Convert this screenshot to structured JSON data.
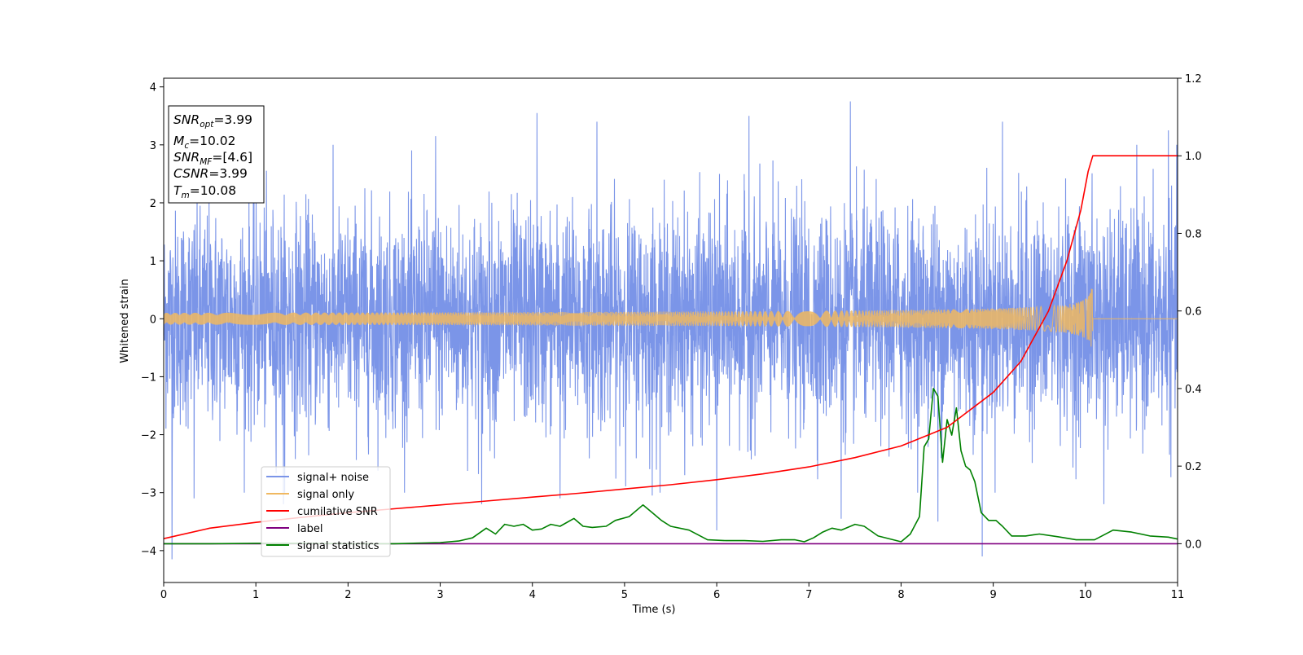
{
  "chart_data": {
    "type": "line",
    "title": "",
    "xlabel": "Time (s)",
    "ylabel": "Whitened strain",
    "ylabel_right": "",
    "xlim": [
      0,
      11
    ],
    "ylim": [
      -4.55,
      4.15
    ],
    "ylim_right": [
      -0.1,
      1.2
    ],
    "x_ticks": [
      0,
      1,
      2,
      3,
      4,
      5,
      6,
      7,
      8,
      9,
      10,
      11
    ],
    "y_ticks": [
      -4,
      -3,
      -2,
      -1,
      0,
      1,
      2,
      3,
      4
    ],
    "y_ticks_right": [
      0.0,
      0.2,
      0.4,
      0.6,
      0.8,
      1.0,
      1.2
    ],
    "x_tick_labels": [
      "0",
      "1",
      "2",
      "3",
      "4",
      "5",
      "6",
      "7",
      "8",
      "9",
      "10",
      "11"
    ],
    "y_tick_labels": [
      "−4",
      "−3",
      "−2",
      "−1",
      "0",
      "1",
      "2",
      "3",
      "4"
    ],
    "y_tick_labels_right": [
      "0.0",
      "0.2",
      "0.4",
      "0.6",
      "0.8",
      "1.0",
      "1.2"
    ],
    "grid": false,
    "legend_position": "lower-left",
    "annotation_box": {
      "position": "upper-left",
      "lines": [
        {
          "base": "SNR",
          "sub": "opt",
          "value": "=3.99"
        },
        {
          "base": "M",
          "sub": "c",
          "value": "=10.02"
        },
        {
          "base": "SNR",
          "sub": "MF",
          "value": "=[4.6]"
        },
        {
          "base": "CSNR",
          "sub": "",
          "value": "=3.99"
        },
        {
          "base": "T",
          "sub": "m",
          "value": "=10.08"
        }
      ]
    },
    "series": [
      {
        "name": "signal+ noise",
        "color": "#7b95e8",
        "axis": "left",
        "kind": "noise",
        "typical_range": [
          -1.4,
          1.5
        ],
        "peaks": [
          [
            0.09,
            -4.15
          ],
          [
            0.33,
            -3.1
          ],
          [
            1.3,
            -3.2
          ],
          [
            2.95,
            3.15
          ],
          [
            3.45,
            -3.2
          ],
          [
            4.05,
            3.55
          ],
          [
            4.3,
            -3.1
          ],
          [
            4.7,
            3.4
          ],
          [
            5.3,
            -3.05
          ],
          [
            6.0,
            -3.65
          ],
          [
            6.35,
            3.5
          ],
          [
            7.35,
            -3.45
          ],
          [
            7.45,
            3.75
          ],
          [
            8.4,
            -3.5
          ],
          [
            8.88,
            -4.1
          ],
          [
            9.1,
            3.4
          ],
          [
            10.2,
            -3.2
          ],
          [
            10.9,
            3.25
          ]
        ]
      },
      {
        "name": "signal only",
        "color": "#f0b860",
        "axis": "left",
        "kind": "chirp",
        "t_merge": 10.08,
        "peak_amplitude": 0.55
      },
      {
        "name": "cumilative SNR",
        "color": "#ff0000",
        "axis": "right",
        "x": [
          0.0,
          0.5,
          1.0,
          1.5,
          2.0,
          2.5,
          3.0,
          3.5,
          4.0,
          4.5,
          5.0,
          5.5,
          6.0,
          6.5,
          7.0,
          7.5,
          8.0,
          8.5,
          9.0,
          9.3,
          9.6,
          9.8,
          9.95,
          10.03,
          10.08,
          10.5,
          11.0
        ],
        "values": [
          0.013,
          0.04,
          0.055,
          0.068,
          0.08,
          0.09,
          0.1,
          0.11,
          0.12,
          0.13,
          0.141,
          0.152,
          0.165,
          0.18,
          0.198,
          0.222,
          0.252,
          0.3,
          0.39,
          0.47,
          0.6,
          0.73,
          0.86,
          0.96,
          1.0,
          1.0,
          1.0
        ]
      },
      {
        "name": "label",
        "color": "#800080",
        "axis": "right",
        "x": [
          0,
          11
        ],
        "values": [
          0.0,
          0.0
        ]
      },
      {
        "name": "signal statistics",
        "color": "#008000",
        "axis": "right",
        "x": [
          0.0,
          0.5,
          1.0,
          1.5,
          2.0,
          2.5,
          3.0,
          3.2,
          3.35,
          3.5,
          3.6,
          3.7,
          3.8,
          3.9,
          4.0,
          4.1,
          4.2,
          4.3,
          4.45,
          4.55,
          4.65,
          4.8,
          4.9,
          5.05,
          5.2,
          5.3,
          5.4,
          5.5,
          5.7,
          5.9,
          6.1,
          6.3,
          6.5,
          6.7,
          6.85,
          6.95,
          7.05,
          7.15,
          7.25,
          7.35,
          7.5,
          7.6,
          7.75,
          8.0,
          8.1,
          8.2,
          8.25,
          8.3,
          8.35,
          8.4,
          8.45,
          8.5,
          8.55,
          8.6,
          8.65,
          8.7,
          8.75,
          8.8,
          8.87,
          8.95,
          9.03,
          9.1,
          9.2,
          9.35,
          9.5,
          9.7,
          9.9,
          10.1,
          10.3,
          10.5,
          10.7,
          10.9,
          11.0
        ],
        "values": [
          0.0,
          0.0,
          0.001,
          0.001,
          0.0,
          0.0,
          0.003,
          0.007,
          0.015,
          0.04,
          0.025,
          0.05,
          0.045,
          0.05,
          0.035,
          0.038,
          0.05,
          0.045,
          0.065,
          0.045,
          0.042,
          0.045,
          0.06,
          0.07,
          0.1,
          0.08,
          0.06,
          0.045,
          0.035,
          0.01,
          0.008,
          0.008,
          0.006,
          0.01,
          0.01,
          0.005,
          0.015,
          0.03,
          0.04,
          0.035,
          0.05,
          0.045,
          0.02,
          0.005,
          0.025,
          0.07,
          0.25,
          0.27,
          0.4,
          0.38,
          0.21,
          0.32,
          0.28,
          0.35,
          0.24,
          0.2,
          0.19,
          0.16,
          0.08,
          0.06,
          0.06,
          0.045,
          0.02,
          0.02,
          0.025,
          0.018,
          0.01,
          0.01,
          0.035,
          0.03,
          0.02,
          0.017,
          0.012
        ]
      }
    ]
  }
}
